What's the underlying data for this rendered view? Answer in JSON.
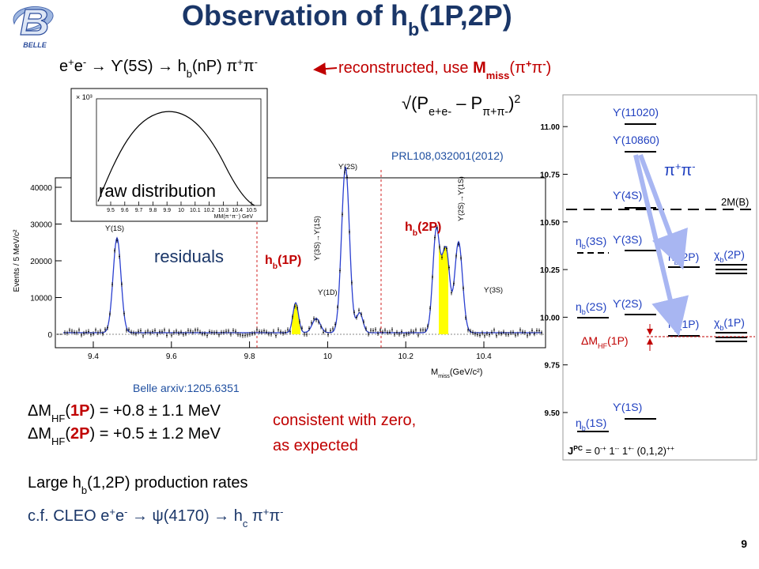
{
  "logo": "BELLE",
  "title": [
    "Observation of  h",
    "b",
    "(1P,2P)"
  ],
  "reaction": [
    "e",
    "+",
    "e",
    "-",
    " → ϒ(5S) → h",
    "b",
    "(nP) π",
    "+",
    "π",
    "-"
  ],
  "annotation": [
    "reconstructed, use ",
    "M",
    "miss",
    "(π",
    "+",
    "π",
    "-",
    ")"
  ],
  "formula": [
    "√(P",
    "e+e-",
    " – P",
    "π+π-",
    ")",
    "2"
  ],
  "plot": {
    "reference": "PRL108,032001(2012)",
    "y_label": "Events / 5 MeV/c²",
    "yticks": [
      "0",
      "10000",
      "20000",
      "30000",
      "40000"
    ],
    "xticks": [
      "9.4",
      "9.6",
      "9.8",
      "10",
      "10.2",
      "10.4"
    ],
    "x_label": [
      "M",
      "miss",
      "(GeV/c²)"
    ],
    "peaks": [
      "ϒ(1S)",
      "ϒ(2S)",
      "ϒ(1D)",
      "ϒ(3S)",
      "ϒ(3S)→ϒ(1S)",
      "ϒ(2S)→ϒ(1S)"
    ],
    "signals": [
      [
        "h",
        "b",
        "(1P)"
      ],
      [
        "h",
        "b",
        "(2P)"
      ]
    ],
    "inset_label": "raw distribution",
    "residual_label": "residuals",
    "inset": {
      "multiplier": "× 10³",
      "xticks": [
        "9.5",
        "9.6",
        "9.7",
        "9.8",
        "9.9",
        "10",
        "10.1",
        "10.2",
        "10.3",
        "10.4",
        "10.5"
      ],
      "x_label": "MM(π⁺π⁻) GeV"
    },
    "source": "Belle arxiv:1205.6351"
  },
  "results": [
    [
      "ΔM",
      "HF",
      "(",
      "1P",
      ") = +0.8 ± 1.1 MeV"
    ],
    [
      "ΔM",
      "HF",
      "(",
      "2P",
      ") = +0.5 ± 1.2 MeV"
    ]
  ],
  "comment": [
    "consistent with zero,",
    "as expected"
  ],
  "rates": [
    "Large h",
    "b",
    "(1,2P) production rates"
  ],
  "cleo": [
    "c.f.  CLEO e",
    "+",
    "e",
    "-",
    " → ψ(4170) → h",
    "c",
    " π",
    "+",
    "π",
    "-"
  ],
  "levels": {
    "ticks": [
      "9.50",
      "9.75",
      "10.00",
      "10.25",
      "10.50",
      "10.75",
      "11.00"
    ],
    "upsilon": [
      "ϒ(1S)",
      "ϒ(2S)",
      "ϒ(3S)",
      "ϒ(4S)",
      "ϒ(10860)",
      "ϒ(11020)"
    ],
    "eta": [
      [
        "η",
        "b",
        "(1S)"
      ],
      [
        "η",
        "b",
        "(2S)"
      ],
      [
        "η",
        "b",
        "(3S)"
      ]
    ],
    "hb": [
      [
        "h",
        "b",
        "(1P)"
      ],
      [
        "h",
        "b",
        "(2P)"
      ]
    ],
    "chi": [
      [
        "χ",
        "b",
        "(1P)"
      ],
      [
        "χ",
        "b",
        "(2P)"
      ]
    ],
    "threshold": "2M(B)",
    "pions": [
      "π",
      "+",
      "π",
      "-"
    ],
    "splitting": [
      "ΔM",
      "HF",
      "(1P)"
    ],
    "jpc": [
      "J",
      "PC",
      " = 0",
      "-+",
      "  1",
      "--",
      "    1",
      "+-",
      " (0,1,2)",
      "++"
    ]
  },
  "page_number": "9"
}
